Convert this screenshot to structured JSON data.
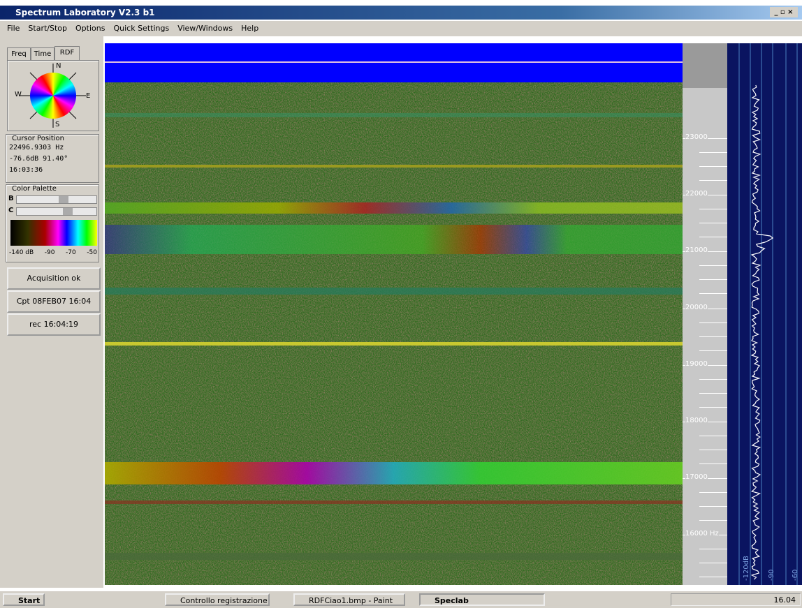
{
  "window": {
    "title": "Spectrum Laboratory V2.3 b1",
    "menu": [
      "File",
      "Start/Stop",
      "Options",
      "Quick Settings",
      "View/Windows",
      "Help"
    ]
  },
  "left_panel": {
    "tabs": [
      "Freq",
      "Time",
      "RDF"
    ],
    "compass": [
      "N",
      "W",
      "E",
      "S"
    ],
    "cursor_position": {
      "title": "Cursor Position",
      "lines": [
        "22496.9303 Hz",
        "-76.6dB 91.40°",
        "16:03:36"
      ]
    },
    "color_palette": {
      "title": "Color Palette",
      "sliders": [
        "B",
        "C"
      ],
      "scale": [
        "-140 dB",
        "-90",
        "-70",
        "-50"
      ]
    },
    "buttons": [
      "Acquisition ok",
      "Cpt 08FEB07 16:04",
      "rec 16:04:19"
    ]
  },
  "frequency_axis": [
    "23000",
    "22000",
    "21000",
    "20000",
    "19000",
    "18000",
    "17000",
    "16000 Hz"
  ],
  "spectrum_axis": [
    "-120dB",
    "-90",
    "-60"
  ],
  "taskbar": {
    "start": "Start",
    "tasks": [
      "Controllo registrazione",
      "RDFCiao1.bmp - Paint",
      "Speclab"
    ],
    "clock": "16.04"
  }
}
